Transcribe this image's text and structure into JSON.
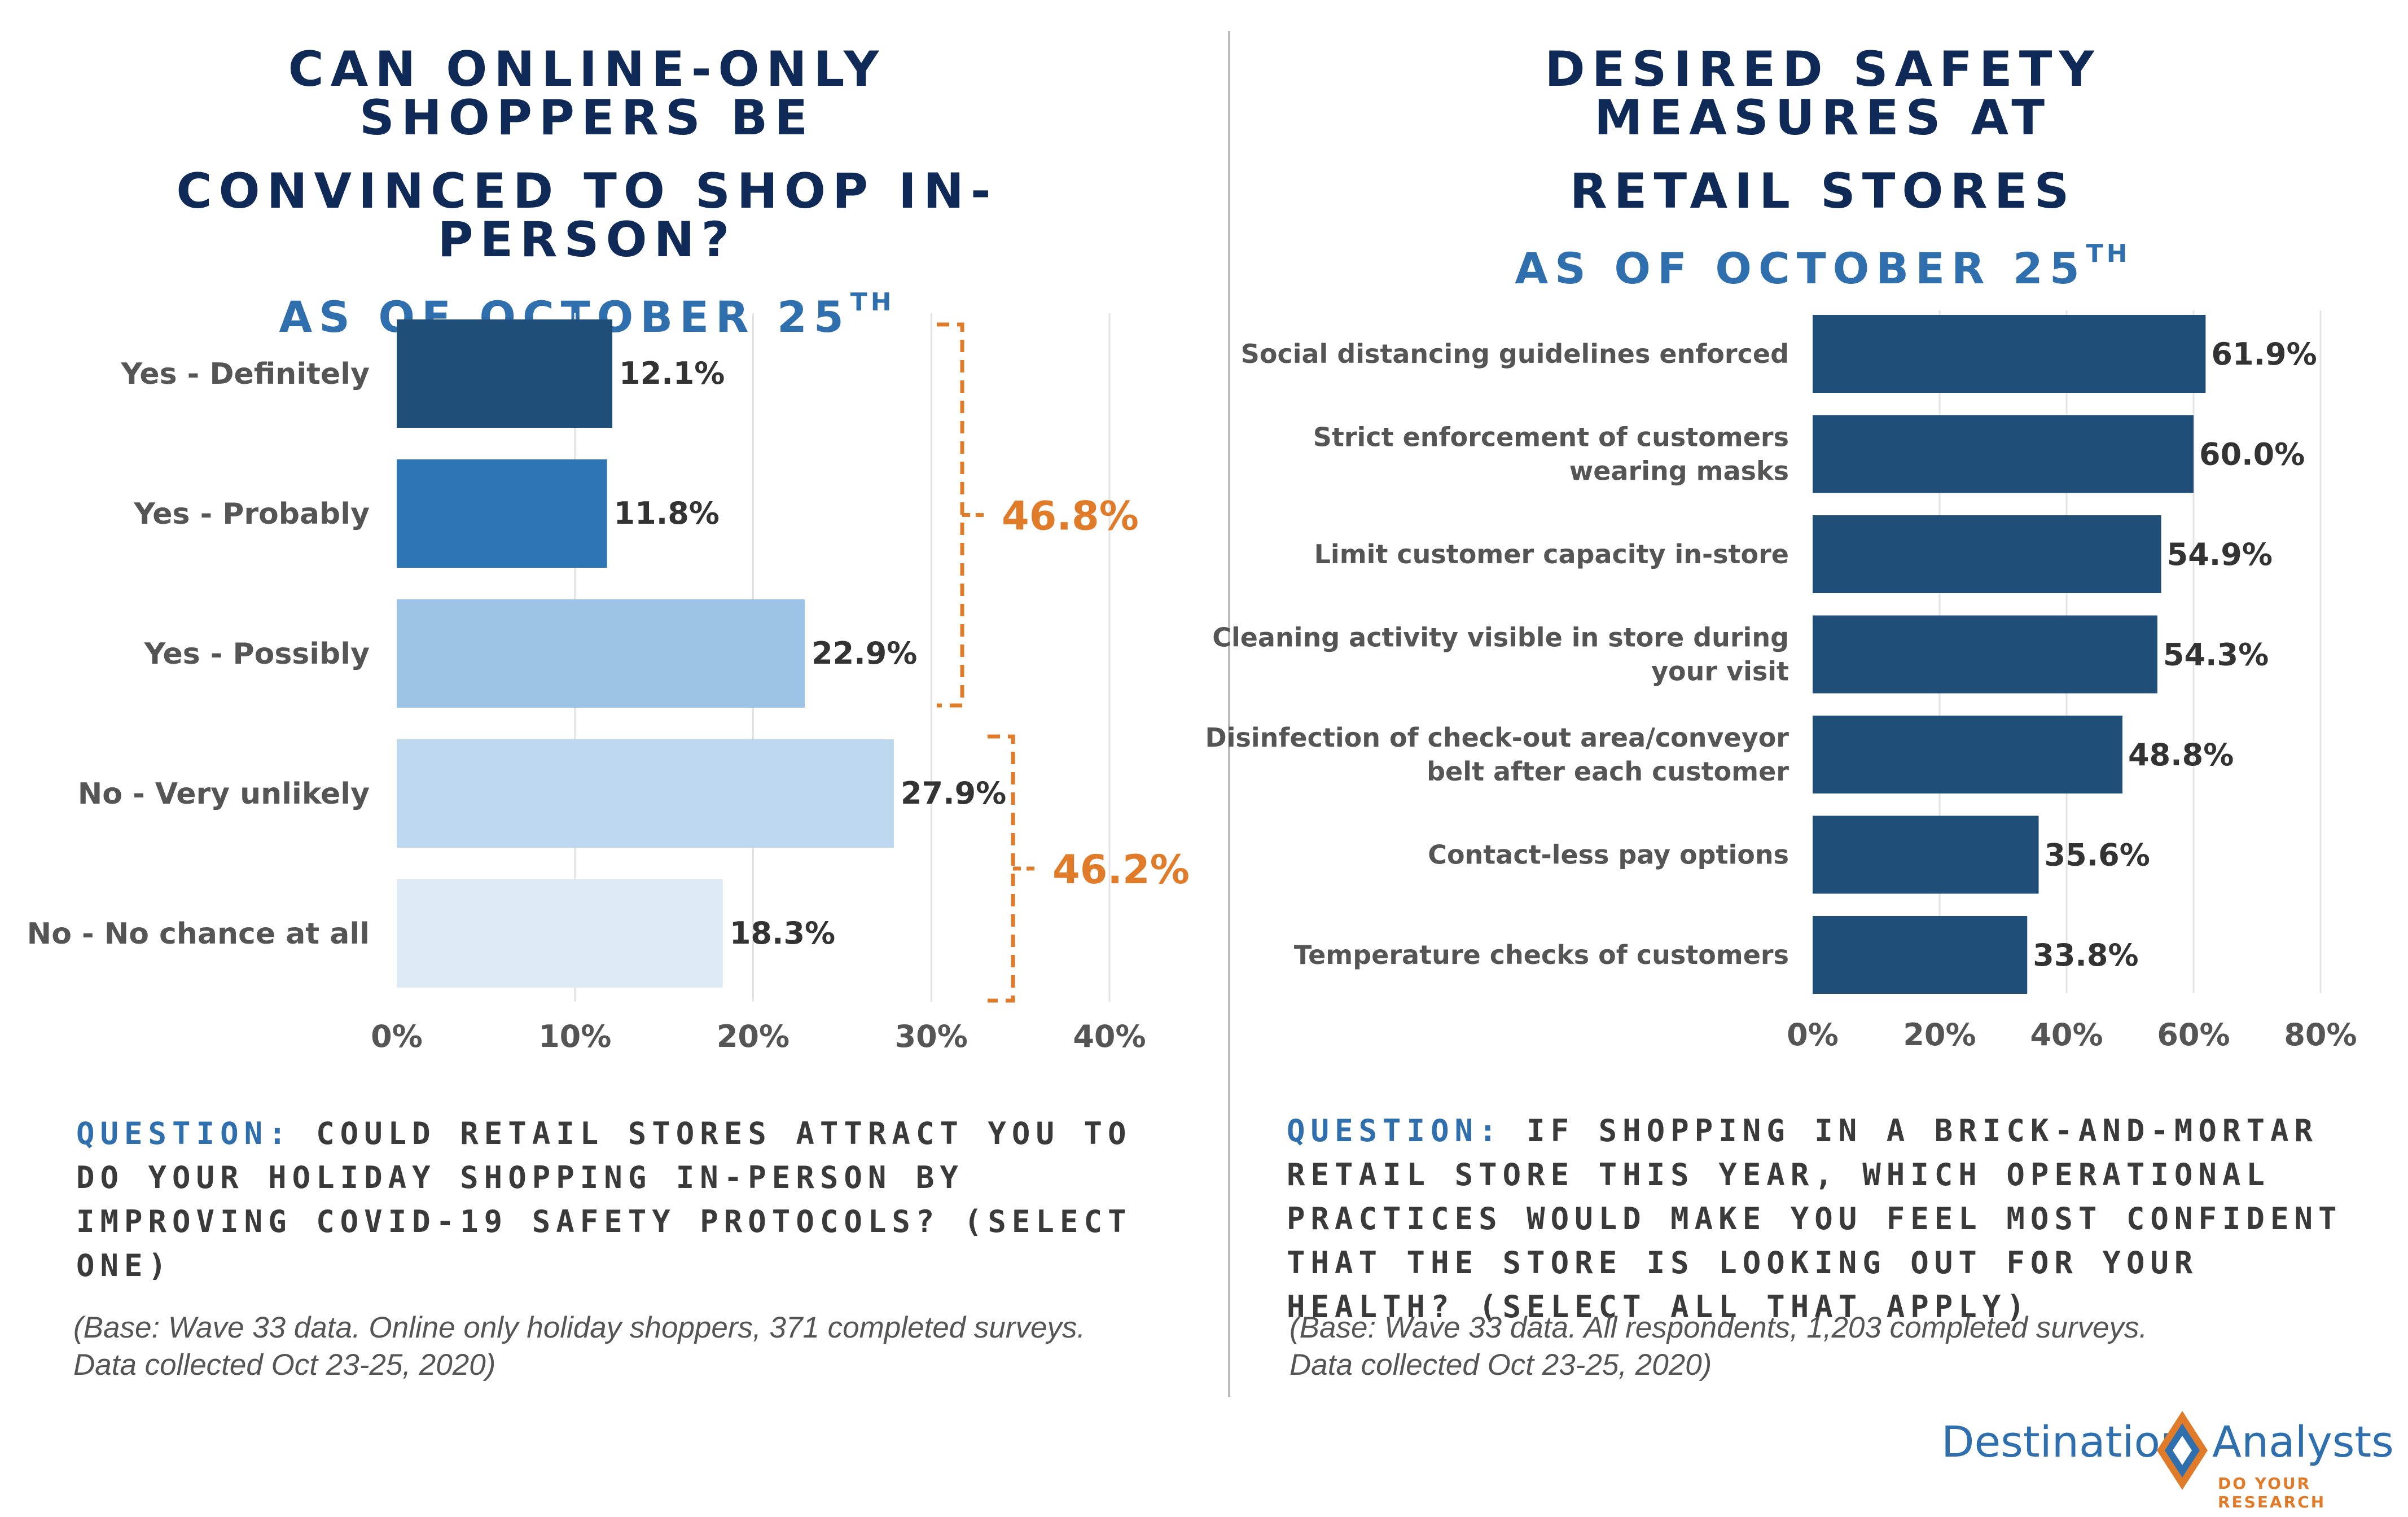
{
  "left": {
    "title_line1": "CAN ONLINE-ONLY SHOPPERS BE",
    "title_line2": "CONVINCED TO SHOP IN-PERSON?",
    "subtitle": "AS OF OCTOBER 25",
    "subtitle_sup": "TH",
    "question_label": "QUESTION:",
    "question_text": "COULD RETAIL STORES ATTRACT YOU TO DO YOUR HOLIDAY SHOPPING IN-PERSON BY IMPROVING COVID-19 SAFETY PROTOCOLS?  (SELECT ONE)",
    "base_line1": "(Base: Wave 33 data. Online only holiday shoppers, 371 completed surveys.",
    "base_line2": "Data collected Oct 23-25, 2020)",
    "bracket_yes": "46.8%",
    "bracket_no": "46.2%"
  },
  "right": {
    "title_line1": "DESIRED SAFETY MEASURES AT",
    "title_line2": "RETAIL STORES",
    "subtitle": "AS OF OCTOBER 25",
    "subtitle_sup": "TH",
    "question_label": "QUESTION:",
    "question_text": "IF SHOPPING IN A BRICK-AND-MORTAR RETAIL STORE THIS YEAR, WHICH OPERATIONAL PRACTICES WOULD MAKE YOU FEEL MOST CONFIDENT THAT THE STORE IS LOOKING OUT FOR YOUR HEALTH? (SELECT ALL THAT APPLY)",
    "base_line1": "(Base: Wave 33 data. All respondents, 1,203 completed surveys.",
    "base_line2": "Data collected Oct 23-25, 2020)"
  },
  "logo": {
    "word1": "Destination",
    "word2": "Analysts",
    "tagline": "DO YOUR RESEARCH"
  },
  "colors": {
    "title": "#0f2a56",
    "subtitle": "#2f6fae",
    "bracket": "#e07b2a",
    "right_bars": "#1f4e79"
  },
  "chart_data": [
    {
      "type": "bar",
      "orientation": "horizontal",
      "categories": [
        "Yes - Definitely",
        "Yes  - Probably",
        "Yes - Possibly",
        "No - Very unlikely",
        "No - No chance at all"
      ],
      "values": [
        12.1,
        11.8,
        22.9,
        27.9,
        18.3
      ],
      "value_labels": [
        "12.1%",
        "11.8%",
        "22.9%",
        "27.9%",
        "18.3%"
      ],
      "bar_colors": [
        "#1f4e79",
        "#2e75b6",
        "#9dc3e6",
        "#bdd7ee",
        "#deebf7"
      ],
      "xlim": [
        0,
        40
      ],
      "xticks": [
        0,
        10,
        20,
        30,
        40
      ],
      "xtick_labels": [
        "0%",
        "10%",
        "20%",
        "30%",
        "40%"
      ],
      "grid": true,
      "annotations": [
        {
          "text": "46.8%",
          "groups": [
            "Yes - Definitely",
            "Yes  - Probably",
            "Yes - Possibly"
          ]
        },
        {
          "text": "46.2%",
          "groups": [
            "No - Very unlikely",
            "No - No chance at all"
          ]
        }
      ]
    },
    {
      "type": "bar",
      "orientation": "horizontal",
      "categories": [
        "Social distancing guidelines enforced",
        "Strict enforcement of customers wearing masks",
        "Limit customer capacity in-store",
        "Cleaning activity visible in store during your visit",
        "Disinfection of check-out area/conveyor belt after each customer",
        "Contact-less pay options",
        "Temperature checks of customers"
      ],
      "category_lines": [
        [
          "Social distancing guidelines enforced"
        ],
        [
          "Strict enforcement of customers",
          "wearing masks"
        ],
        [
          "Limit customer capacity in-store"
        ],
        [
          "Cleaning activity visible in store during",
          "your visit"
        ],
        [
          "Disinfection of check-out area/conveyor",
          "belt after each customer"
        ],
        [
          "Contact-less pay options"
        ],
        [
          "Temperature checks of customers"
        ]
      ],
      "values": [
        61.9,
        60.0,
        54.9,
        54.3,
        48.8,
        35.6,
        33.8
      ],
      "value_labels": [
        "61.9%",
        "60.0%",
        "54.9%",
        "54.3%",
        "48.8%",
        "35.6%",
        "33.8%"
      ],
      "xlim": [
        0,
        80
      ],
      "xticks": [
        0,
        20,
        40,
        60,
        80
      ],
      "xtick_labels": [
        "0%",
        "20%",
        "40%",
        "60%",
        "80%"
      ],
      "grid": true
    }
  ]
}
